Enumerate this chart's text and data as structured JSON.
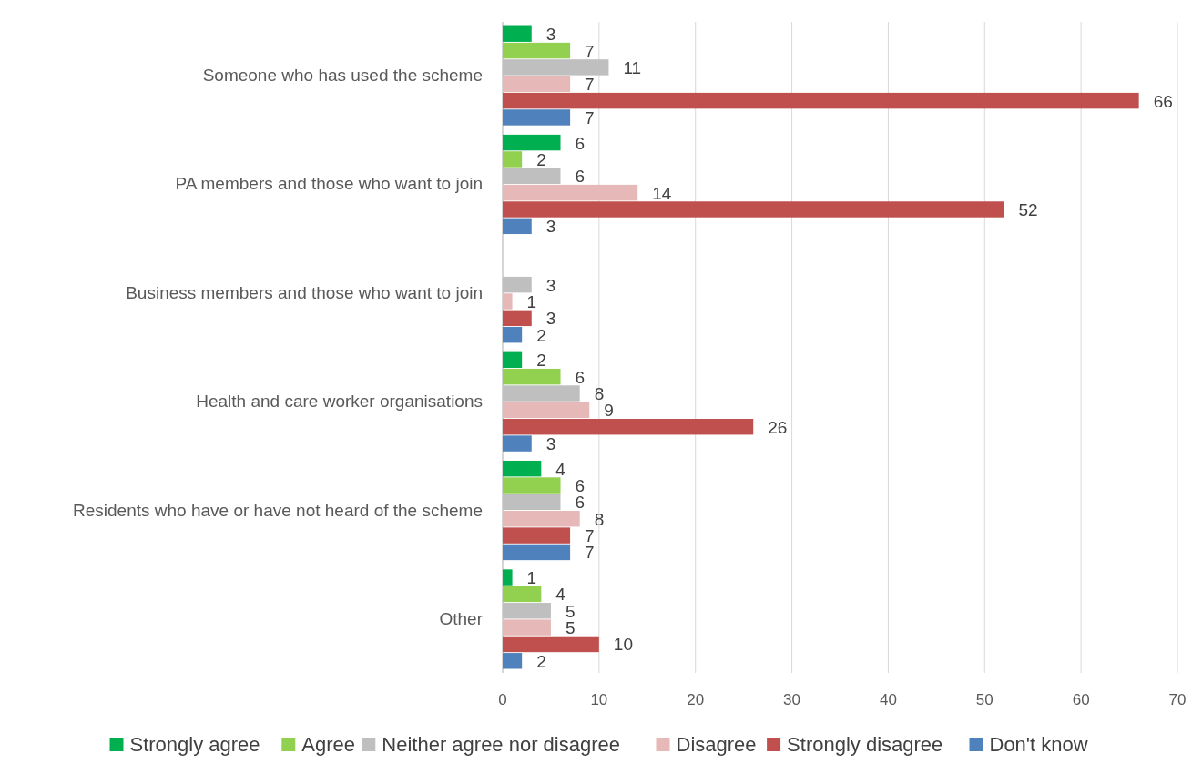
{
  "chart_data": {
    "type": "bar",
    "orientation": "horizontal",
    "categories": [
      "Someone who has used the scheme",
      "PA members and those who want to join",
      "Business members and those who want to join",
      "Health and care worker organisations",
      "Residents who have or have not heard of the scheme",
      "Other"
    ],
    "series": [
      {
        "name": "Strongly agree",
        "color": "#00b050",
        "values": [
          3,
          6,
          0,
          2,
          4,
          1
        ],
        "value_labels": [
          "3",
          "6",
          null,
          "2",
          "4",
          "1"
        ]
      },
      {
        "name": "Agree",
        "color": "#92d050",
        "values": [
          7,
          2,
          0,
          6,
          6,
          4
        ],
        "value_labels": [
          "7",
          "2",
          null,
          "6",
          "6",
          "4"
        ]
      },
      {
        "name": "Neither agree nor disagree",
        "color": "#bfbfbf",
        "values": [
          11,
          6,
          3,
          8,
          6,
          5
        ],
        "value_labels": [
          "11",
          "6",
          "3",
          "8",
          "6",
          "5"
        ]
      },
      {
        "name": "Disagree",
        "color": "#e6b9b8",
        "values": [
          7,
          14,
          1,
          9,
          8,
          5
        ],
        "value_labels": [
          "7",
          "14",
          "1",
          "9",
          "8",
          "5"
        ]
      },
      {
        "name": "Strongly disagree",
        "color": "#c0504d",
        "values": [
          66,
          52,
          3,
          26,
          7,
          10
        ],
        "value_labels": [
          "66",
          "52",
          "3",
          "26",
          "7",
          "10"
        ]
      },
      {
        "name": "Don't know",
        "color": "#4f81bd",
        "values": [
          7,
          3,
          2,
          3,
          7,
          2
        ],
        "value_labels": [
          "7",
          "3",
          "2",
          "3",
          "7",
          "2"
        ]
      }
    ],
    "xlim": [
      0,
      70
    ],
    "xticks": [
      0,
      10,
      20,
      30,
      40,
      50,
      60,
      70
    ],
    "grid": "x",
    "legend": "bottom"
  }
}
